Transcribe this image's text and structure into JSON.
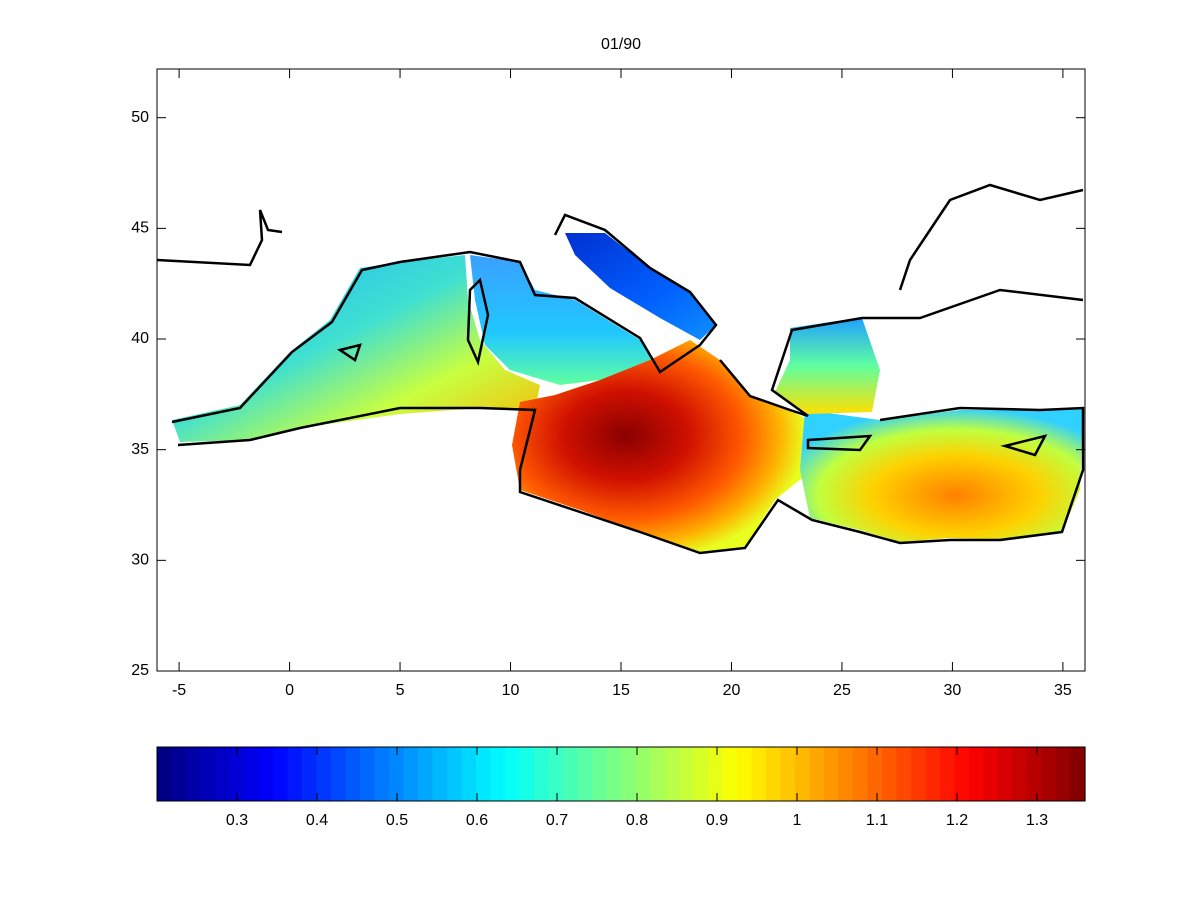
{
  "chart_data": {
    "type": "map",
    "title": "01/90",
    "xlim": [
      -6,
      36
    ],
    "ylim": [
      25,
      52.2
    ],
    "xticks": [
      -5,
      0,
      5,
      10,
      15,
      20,
      25,
      30,
      35
    ],
    "yticks": [
      25,
      30,
      35,
      40,
      45,
      50
    ],
    "colorbar": {
      "colormap": "jet",
      "clim": [
        0.2,
        1.36
      ],
      "ticks": [
        0.3,
        0.4,
        0.5,
        0.6,
        0.7,
        0.8,
        0.9,
        1,
        1.1,
        1.2,
        1.3
      ]
    }
  }
}
